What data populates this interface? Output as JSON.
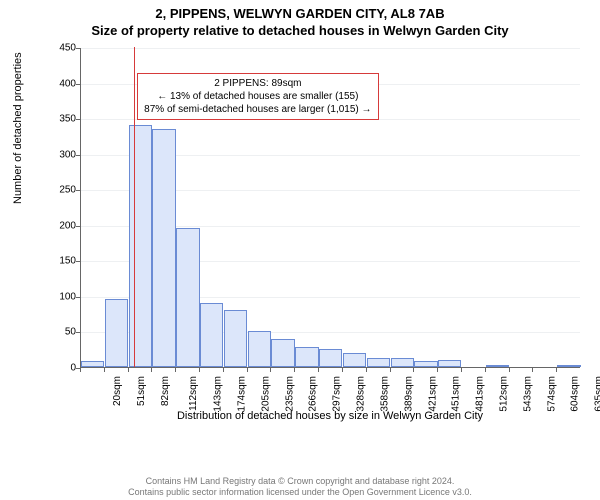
{
  "title": {
    "line1": "2, PIPPENS, WELWYN GARDEN CITY, AL8 7AB",
    "line2": "Size of property relative to detached houses in Welwyn Garden City"
  },
  "chart": {
    "type": "histogram",
    "y_axis_label": "Number of detached properties",
    "x_axis_caption": "Distribution of detached houses by size in Welwyn Garden City",
    "ylim": [
      0,
      450
    ],
    "ytick_step": 50,
    "x_labels": [
      "20sqm",
      "51sqm",
      "82sqm",
      "112sqm",
      "143sqm",
      "174sqm",
      "205sqm",
      "235sqm",
      "266sqm",
      "297sqm",
      "328sqm",
      "358sqm",
      "389sqm",
      "421sqm",
      "451sqm",
      "481sqm",
      "512sqm",
      "543sqm",
      "574sqm",
      "604sqm",
      "635sqm"
    ],
    "values": [
      8,
      96,
      340,
      335,
      195,
      90,
      80,
      50,
      40,
      28,
      25,
      20,
      12,
      12,
      8,
      10,
      0,
      3,
      0,
      0,
      3
    ],
    "bar_fill": "#dce6fa",
    "bar_stroke": "#6a8bd4",
    "grid_color": "#eef0f2",
    "background_color": "#ffffff",
    "reference_line": {
      "x_value_sqm": 89,
      "color": "#d63a3a"
    },
    "annotation": {
      "line1": "2 PIPPENS: 89sqm",
      "line2": "← 13% of detached houses are smaller (155)",
      "line3": "87% of semi-detached houses are larger (1,015) →",
      "border_color": "#d63a3a"
    }
  },
  "footer": {
    "line1": "Contains HM Land Registry data © Crown copyright and database right 2024.",
    "line2": "Contains public sector information licensed under the Open Government Licence v3.0."
  }
}
